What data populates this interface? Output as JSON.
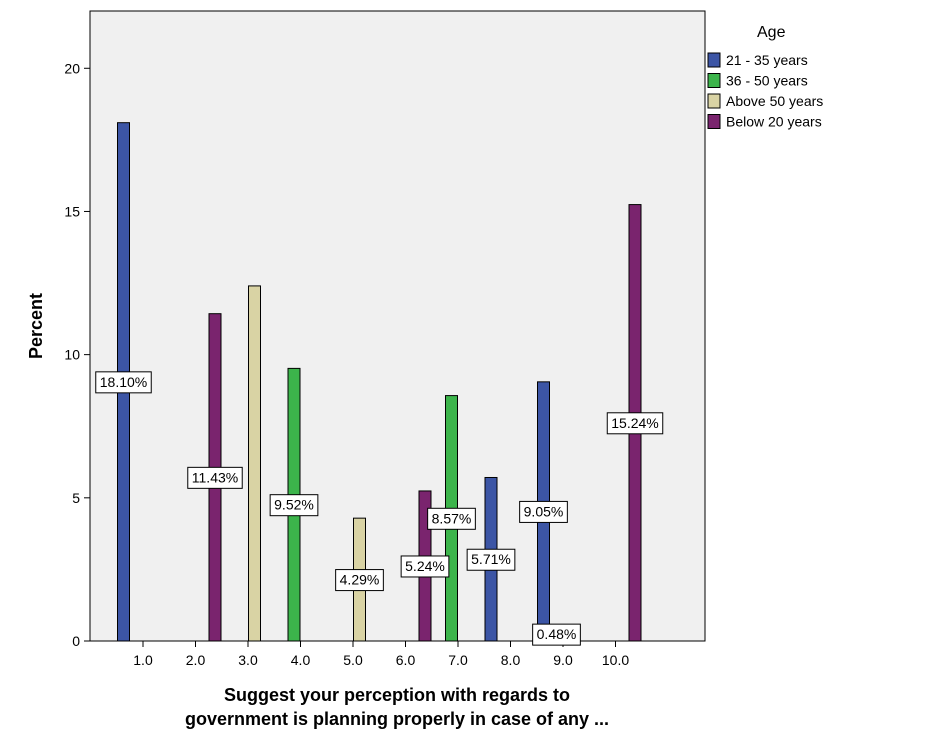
{
  "chart_data": {
    "type": "bar",
    "categories": [
      "1.0",
      "2.0",
      "3.0",
      "4.0",
      "5.0",
      "6.0",
      "7.0",
      "8.0",
      "9.0",
      "10.0"
    ],
    "ylabel": "Percent",
    "xlabel_lines": [
      "Suggest your perception with regards to",
      "government is planning properly in case of any ..."
    ],
    "ylim": [
      0,
      22
    ],
    "yticks": [
      0,
      5,
      10,
      15,
      20
    ],
    "legend": {
      "title": "Age",
      "placement": "top-right, outside plot"
    },
    "series": [
      {
        "name": "21 - 35 years",
        "color": "#3c55a5"
      },
      {
        "name": "36 - 50 years",
        "color": "#3cb44b"
      },
      {
        "name": "Above 50 years",
        "color": "#d9d3a4"
      },
      {
        "name": "Below 20 years",
        "color": "#7a246e"
      }
    ],
    "bars": [
      {
        "category": "1.0",
        "series": "21 - 35 years",
        "value": 18.1,
        "label": "18.10%"
      },
      {
        "category": "2.0",
        "series": "Below 20 years",
        "value": 11.43,
        "label": "11.43%"
      },
      {
        "category": "3.0",
        "series": "Above 50 years",
        "value": 12.4,
        "label": ""
      },
      {
        "category": "4.0",
        "series": "36 - 50 years",
        "value": 9.52,
        "label": "9.52%"
      },
      {
        "category": "5.0",
        "series": "Above 50 years",
        "value": 4.29,
        "label": "4.29%"
      },
      {
        "category": "6.0",
        "series": "Below 20 years",
        "value": 5.24,
        "label": "5.24%"
      },
      {
        "category": "7.0",
        "series": "36 - 50 years",
        "value": 8.57,
        "label": "8.57%"
      },
      {
        "category": "8.0",
        "series": "21 - 35 years",
        "value": 5.71,
        "label": "5.71%"
      },
      {
        "category": "9.0",
        "series": "21 - 35 years",
        "value": 9.05,
        "label": "9.05%"
      },
      {
        "category": "9.0",
        "series": "36 - 50 years",
        "value": 0.48,
        "label": "0.48%"
      },
      {
        "category": "10.0",
        "series": "Below 20 years",
        "value": 15.24,
        "label": "15.24%"
      }
    ],
    "plot_background": "#f0f0f0",
    "grid": false
  }
}
